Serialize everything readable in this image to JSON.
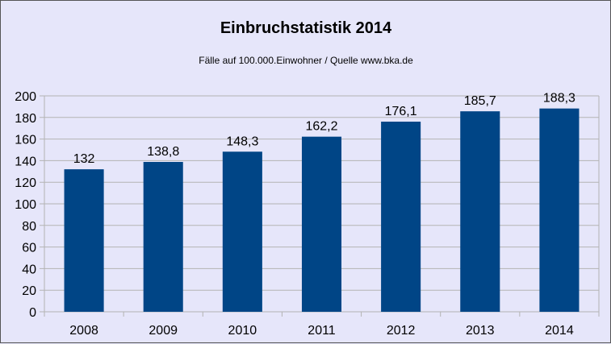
{
  "chart_data": {
    "type": "bar",
    "title": "Einbruchstatistik 2014",
    "subtitle": "Fälle auf 100.000.Einwohner / Quelle www.bka.de",
    "categories": [
      "2008",
      "2009",
      "2010",
      "2011",
      "2012",
      "2013",
      "2014"
    ],
    "values": [
      132,
      138.8,
      148.3,
      162.2,
      176.1,
      185.7,
      188.3
    ],
    "data_labels": [
      "132",
      "138,8",
      "148,3",
      "162,2",
      "176,1",
      "185,7",
      "188,3"
    ],
    "y_ticks": [
      "0",
      "20",
      "40",
      "60",
      "80",
      "100",
      "120",
      "140",
      "160",
      "180",
      "200"
    ],
    "ylim": [
      0,
      200
    ],
    "grid": true,
    "bar_color": "#004586",
    "background_color": "#e6e6fa",
    "xlabel": "",
    "ylabel": ""
  }
}
